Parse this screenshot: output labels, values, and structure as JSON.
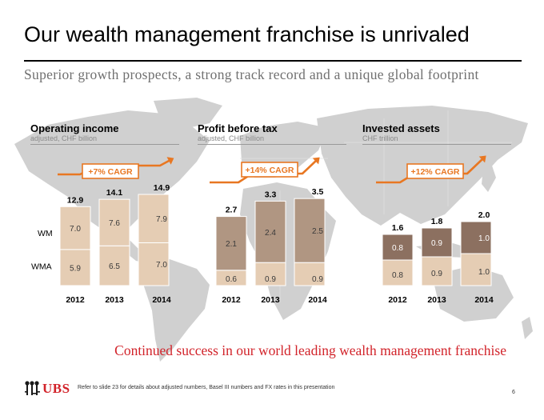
{
  "title": "Our wealth management franchise is unrivaled",
  "subtitle": "Superior growth prospects, a strong track record and a unique global footprint",
  "colors": {
    "accent": "#e87722",
    "bar_light": "#e5cdb4",
    "bar_mid": "#b09682",
    "bar_dark": "#8c7060",
    "map": "#d0d0d0",
    "brand_red": "#d2232a"
  },
  "chart_data": [
    {
      "type": "bar",
      "stacked": true,
      "title": "Operating income",
      "subtitle": "adjusted, CHF billion",
      "cagr_label": "+7% CAGR",
      "categories": [
        "2012",
        "2013",
        "2014"
      ],
      "totals": [
        12.9,
        14.1,
        14.9
      ],
      "series": [
        {
          "name": "WMA",
          "values": [
            5.9,
            6.5,
            7.0
          ]
        },
        {
          "name": "WM",
          "values": [
            7.0,
            7.6,
            7.9
          ]
        }
      ]
    },
    {
      "type": "bar",
      "stacked": true,
      "title": "Profit before tax",
      "subtitle": "adjusted, CHF billion",
      "cagr_label": "+14% CAGR",
      "categories": [
        "2012",
        "2013",
        "2014"
      ],
      "totals": [
        2.7,
        3.3,
        3.5
      ],
      "series": [
        {
          "name": "WMA",
          "values": [
            0.6,
            0.9,
            0.9
          ]
        },
        {
          "name": "WM",
          "values": [
            2.1,
            2.4,
            2.5
          ]
        }
      ]
    },
    {
      "type": "bar",
      "stacked": true,
      "title": "Invested assets",
      "subtitle": "CHF trillion",
      "cagr_label": "+12% CAGR",
      "categories": [
        "2012",
        "2013",
        "2014"
      ],
      "totals": [
        1.6,
        1.8,
        2.0
      ],
      "series": [
        {
          "name": "WMA",
          "values": [
            0.8,
            0.9,
            1.0
          ]
        },
        {
          "name": "WM",
          "values": [
            0.8,
            0.9,
            1.0
          ]
        }
      ]
    }
  ],
  "closing": "Continued success in our world leading wealth management franchise",
  "footnote": "Refer to slide 23 for details about adjusted numbers, Basel III numbers and FX rates in this presentation",
  "page_number": "6",
  "logo_text": "UBS"
}
